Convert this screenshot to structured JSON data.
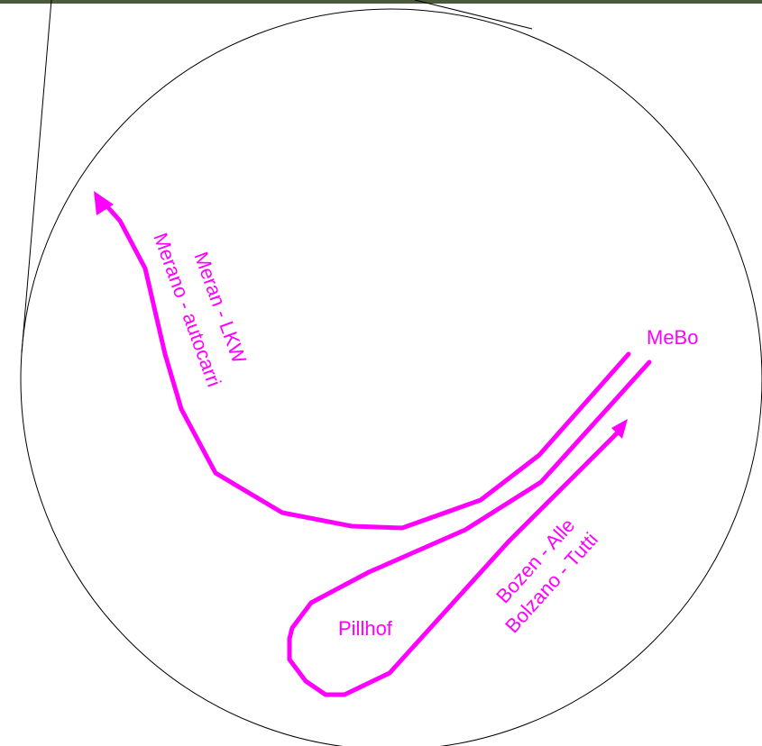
{
  "map": {
    "colors": {
      "route": "#ff00ff",
      "outline": "#000000",
      "background": "#ffffff",
      "top_strip": "#4a5a3a"
    },
    "labels": {
      "mebo": "MeBo",
      "pillhof": "Pillhof",
      "meran_de": "Meran - LKW",
      "meran_it": "Merano - autocarri",
      "bozen_de": "Bozen - Alle",
      "bozen_it": "Bolzano - Tutti"
    },
    "routes": [
      {
        "name": "route-to-meran",
        "direction": "towards Meran (northwest)"
      },
      {
        "name": "route-to-bozen",
        "direction": "towards Bozen (northeast)"
      }
    ]
  }
}
